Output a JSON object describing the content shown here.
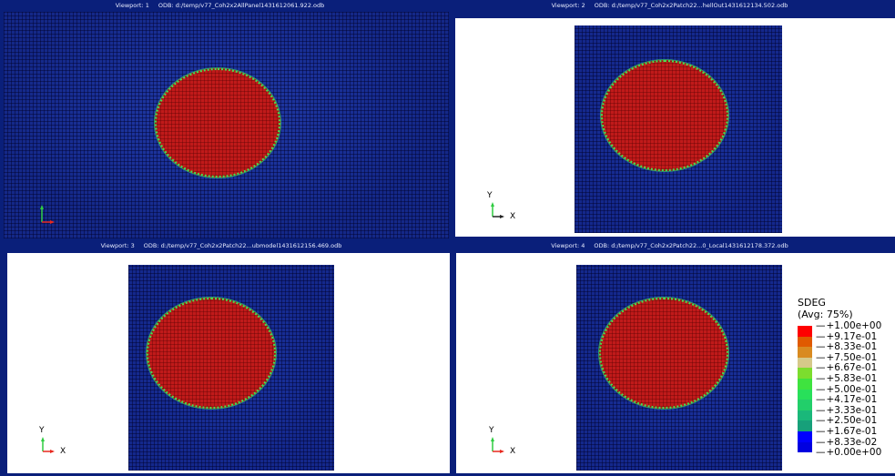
{
  "viewports": [
    {
      "label": "Viewport: 1",
      "odb": "ODB: d:/temp/v77_Coh2x2AllPanel1431612061.922.odb"
    },
    {
      "label": "Viewport: 2",
      "odb": "ODB: d:/temp/v77_Coh2x2Patch22...hellOut1431612134.502.odb"
    },
    {
      "label": "Viewport: 3",
      "odb": "ODB: d:/temp/v77_Coh2x2Patch22...ubmodel1431612156.469.odb"
    },
    {
      "label": "Viewport: 4",
      "odb": "ODB: d:/temp/v77_Coh2x2Patch22...0_Local1431612178.372.odb"
    }
  ],
  "triad": {
    "y": "Y",
    "x": "X"
  },
  "legend": {
    "title": "SDEG",
    "subtitle": "(Avg: 75%)",
    "labels": [
      "+1.00e+00",
      "+9.17e-01",
      "+8.33e-01",
      "+7.50e-01",
      "+6.67e-01",
      "+5.83e-01",
      "+5.00e-01",
      "+4.17e-01",
      "+3.33e-01",
      "+2.50e-01",
      "+1.67e-01",
      "+8.33e-02",
      "+0.00e+00"
    ],
    "colors": [
      "#ff0000",
      "#e05a00",
      "#d98a20",
      "#d6c98a",
      "#7cdd2e",
      "#3fe33f",
      "#28e05a",
      "#22cf6a",
      "#1ab87a",
      "#17a07a",
      "#0000ff",
      "#0000e0"
    ]
  },
  "colors": {
    "mesh": "#142a8f",
    "damage": "#c01a1a",
    "background": "#0a1f7a",
    "canvas": "#ffffff"
  }
}
